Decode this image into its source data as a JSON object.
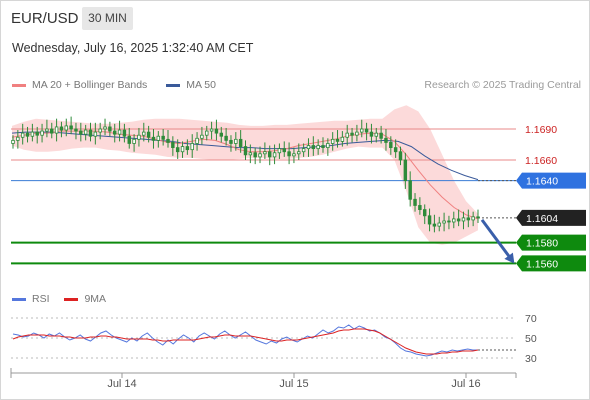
{
  "header": {
    "symbol": "EUR/USD",
    "timeframe": "30 MIN",
    "datetime": "Wednesday, July 16, 2025 1:32:40 AM CET"
  },
  "legend": {
    "ma20_label": "MA 20 + Bollinger Bands",
    "ma50_label": "MA 50",
    "credit": "Research © 2025 Trading Central"
  },
  "rsi_legend": {
    "rsi_label": "RSI",
    "ma_label": "9MA"
  },
  "colors": {
    "candle": "#2e8b3a",
    "resistance": "#e88a8a",
    "resistance_text": "#cc2222",
    "pivot": "#3a7bd5",
    "support": "#0e8a0e",
    "ma20": "#f08080",
    "ma50": "#3a5a9a",
    "band_fill": "#fbd4d4",
    "rsi": "#5577dd",
    "rsi_ma": "#dd2222",
    "arrow": "#3a5faa"
  },
  "chart_data": [
    {
      "type": "candlestick",
      "title": "EUR/USD",
      "timeframe": "30 MIN",
      "x_labels": [
        "Jul 14",
        "Jul 15",
        "Jul 16"
      ],
      "ylim": [
        1.154,
        1.172
      ],
      "levels": [
        {
          "label": "1.1690",
          "value": 1.169,
          "kind": "resistance"
        },
        {
          "label": "1.1660",
          "value": 1.166,
          "kind": "resistance"
        },
        {
          "label": "1.1640",
          "value": 1.164,
          "kind": "pivot"
        },
        {
          "label": "1.1604",
          "value": 1.1604,
          "kind": "last"
        },
        {
          "label": "1.1580",
          "value": 1.158,
          "kind": "support"
        },
        {
          "label": "1.1560",
          "value": 1.156,
          "kind": "support"
        }
      ],
      "close_series": [
        1.1679,
        1.1682,
        1.1686,
        1.1683,
        1.1687,
        1.1684,
        1.1688,
        1.169,
        1.1686,
        1.1692,
        1.1689,
        1.1693,
        1.169,
        1.1688,
        1.1685,
        1.1689,
        1.1683,
        1.1687,
        1.169,
        1.1692,
        1.1688,
        1.1685,
        1.1689,
        1.1683,
        1.1676,
        1.168,
        1.1684,
        1.1687,
        1.1682,
        1.1679,
        1.1683,
        1.168,
        1.1677,
        1.1672,
        1.1668,
        1.1673,
        1.167,
        1.1676,
        1.1681,
        1.1684,
        1.1688,
        1.169,
        1.1686,
        1.1683,
        1.1679,
        1.1676,
        1.168,
        1.1673,
        1.1665,
        1.1667,
        1.1663,
        1.1666,
        1.1668,
        1.1663,
        1.1667,
        1.1671,
        1.1668,
        1.1664,
        1.1666,
        1.1668,
        1.1671,
        1.1674,
        1.1671,
        1.1674,
        1.1672,
        1.1676,
        1.168,
        1.1678,
        1.1682,
        1.1686,
        1.1684,
        1.1687,
        1.169,
        1.1687,
        1.1683,
        1.1686,
        1.1681,
        1.1677,
        1.1672,
        1.1668,
        1.166,
        1.164,
        1.1622,
        1.1616,
        1.1612,
        1.1606,
        1.1598,
        1.1596,
        1.1599,
        1.1601,
        1.16,
        1.1603,
        1.1601,
        1.1604,
        1.1602,
        1.1605,
        1.1604
      ],
      "ma20": [
        1.1682,
        1.1684,
        1.1686,
        1.1686,
        1.1688,
        1.1688,
        1.1688,
        1.1688,
        1.1687,
        1.1685,
        1.1684,
        1.1683,
        1.168,
        1.1677,
        1.1676,
        1.1678,
        1.168,
        1.1679,
        1.1675,
        1.167,
        1.1668,
        1.1668,
        1.1669,
        1.1671,
        1.1674,
        1.1676,
        1.1678,
        1.168,
        1.1683,
        1.1685,
        1.1686,
        1.1685,
        1.1678,
        1.1665,
        1.165,
        1.1636,
        1.1624,
        1.1614,
        1.1607,
        1.1603
      ],
      "ma50": [
        1.1686,
        1.1687,
        1.1687,
        1.1687,
        1.1686,
        1.1685,
        1.1684,
        1.1683,
        1.1682,
        1.1681,
        1.168,
        1.1679,
        1.1678,
        1.1676,
        1.1675,
        1.1674,
        1.1673,
        1.1672,
        1.1672,
        1.1671,
        1.1671,
        1.1671,
        1.1672,
        1.1673,
        1.1674,
        1.1676,
        1.1677,
        1.1678,
        1.1679,
        1.1678,
        1.1673,
        1.1664,
        1.1656,
        1.165,
        1.1645,
        1.1641
      ],
      "bollinger": {
        "upper": [
          1.1693,
          1.1697,
          1.17,
          1.1699,
          1.1698,
          1.1697,
          1.1696,
          1.1695,
          1.1695,
          1.1696,
          1.1697,
          1.1699,
          1.17,
          1.17,
          1.17,
          1.1699,
          1.1698,
          1.1697,
          1.1696,
          1.1694,
          1.1693,
          1.1693,
          1.1694,
          1.1694,
          1.1695,
          1.1696,
          1.1697,
          1.1698,
          1.1698,
          1.1699,
          1.17,
          1.17,
          1.1709,
          1.1713,
          1.1707,
          1.169,
          1.1665,
          1.164,
          1.162,
          1.1608
        ],
        "lower": [
          1.1674,
          1.167,
          1.1668,
          1.1668,
          1.1669,
          1.1671,
          1.1672,
          1.1672,
          1.167,
          1.1669,
          1.1667,
          1.1666,
          1.1665,
          1.1663,
          1.1662,
          1.1662,
          1.1661,
          1.166,
          1.166,
          1.1661,
          1.1662,
          1.1662,
          1.1661,
          1.1661,
          1.1662,
          1.1663,
          1.1665,
          1.1668,
          1.1671,
          1.1673,
          1.1672,
          1.1672,
          1.166,
          1.163,
          1.1595,
          1.158,
          1.1578,
          1.158,
          1.1586,
          1.1592
        ]
      },
      "projection": {
        "from": 1.1604,
        "to": 1.156
      }
    },
    {
      "type": "line",
      "title": "RSI",
      "y_ticks": [
        "70",
        "50",
        "30"
      ],
      "ylim": [
        20,
        80
      ],
      "series": [
        {
          "name": "RSI",
          "values": [
            54,
            53,
            51,
            52,
            55,
            53,
            50,
            54,
            52,
            55,
            51,
            48,
            50,
            53,
            49,
            47,
            51,
            55,
            57,
            53,
            50,
            48,
            46,
            50,
            47,
            52,
            55,
            50,
            46,
            43,
            48,
            44,
            49,
            53,
            50,
            46,
            52,
            55,
            52,
            49,
            54,
            57,
            53,
            50,
            53,
            56,
            52,
            48,
            46,
            44,
            47,
            45,
            49,
            51,
            48,
            46,
            49,
            52,
            50,
            54,
            58,
            55,
            57,
            61,
            60,
            63,
            59,
            62,
            60,
            57,
            58,
            55,
            51,
            49,
            45,
            40,
            37,
            36,
            34,
            33,
            32,
            33,
            35,
            37,
            36,
            38,
            37,
            38,
            39,
            38,
            38
          ]
        },
        {
          "name": "9MA",
          "values": [
            49,
            51,
            52,
            53,
            53,
            53,
            53,
            52,
            52,
            52,
            51,
            51,
            50,
            50,
            50,
            51,
            51,
            52,
            52,
            51,
            51,
            50,
            49,
            49,
            49,
            49,
            49,
            48,
            48,
            47,
            47,
            48,
            48,
            48,
            48,
            48,
            49,
            50,
            51,
            51,
            52,
            53,
            53,
            52,
            52,
            52,
            52,
            51,
            50,
            49,
            48,
            47,
            47,
            48,
            48,
            48,
            49,
            50,
            51,
            52,
            53,
            54,
            55,
            57,
            58,
            58,
            59,
            59,
            59,
            58,
            57,
            55,
            52,
            49,
            46,
            43,
            40,
            38,
            36,
            35,
            34,
            34,
            34,
            35,
            35,
            36,
            36,
            37,
            37,
            37,
            38
          ]
        }
      ]
    }
  ]
}
